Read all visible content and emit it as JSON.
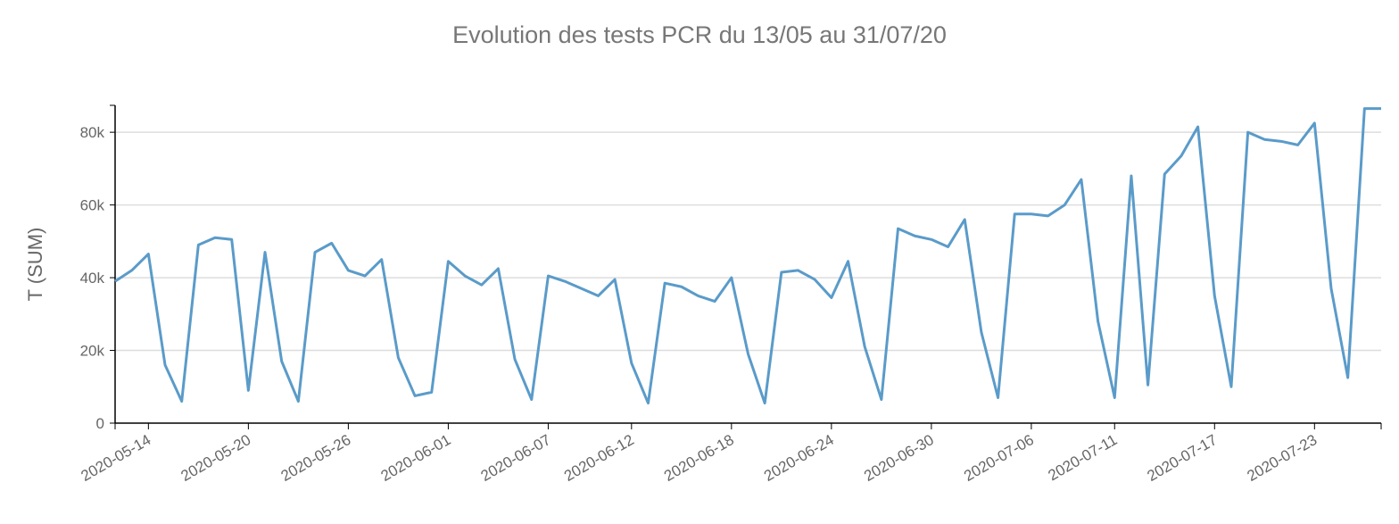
{
  "chart_data": {
    "type": "line",
    "title": "Evolution des tests PCR du 13/05 au 31/07/20",
    "y_label": "T (SUM)",
    "x": [
      "2020-05-12",
      "2020-05-13",
      "2020-05-14",
      "2020-05-15",
      "2020-05-16",
      "2020-05-17",
      "2020-05-18",
      "2020-05-19",
      "2020-05-20",
      "2020-05-21",
      "2020-05-22",
      "2020-05-23",
      "2020-05-24",
      "2020-05-25",
      "2020-05-26",
      "2020-05-27",
      "2020-05-28",
      "2020-05-29",
      "2020-05-30",
      "2020-05-31",
      "2020-06-01",
      "2020-06-02",
      "2020-06-03",
      "2020-06-04",
      "2020-06-05",
      "2020-06-06",
      "2020-06-07",
      "2020-06-08",
      "2020-06-09",
      "2020-06-10",
      "2020-06-11",
      "2020-06-12",
      "2020-06-13",
      "2020-06-14",
      "2020-06-15",
      "2020-06-16",
      "2020-06-17",
      "2020-06-18",
      "2020-06-19",
      "2020-06-20",
      "2020-06-21",
      "2020-06-22",
      "2020-06-23",
      "2020-06-24",
      "2020-06-25",
      "2020-06-26",
      "2020-06-27",
      "2020-06-28",
      "2020-06-29",
      "2020-06-30",
      "2020-07-01",
      "2020-07-02",
      "2020-07-03",
      "2020-07-04",
      "2020-07-05",
      "2020-07-06",
      "2020-07-07",
      "2020-07-08",
      "2020-07-09",
      "2020-07-10",
      "2020-07-11",
      "2020-07-12",
      "2020-07-13",
      "2020-07-14",
      "2020-07-15",
      "2020-07-16",
      "2020-07-17",
      "2020-07-18",
      "2020-07-19",
      "2020-07-20",
      "2020-07-21",
      "2020-07-22",
      "2020-07-23",
      "2020-07-24",
      "2020-07-25",
      "2020-07-26",
      "2020-07-27"
    ],
    "series": [
      {
        "name": "T",
        "color": "#5a9bc9",
        "values": [
          39000,
          42000,
          46500,
          16000,
          6000,
          49000,
          51000,
          50500,
          9000,
          47000,
          17000,
          6000,
          47000,
          49500,
          42000,
          40500,
          45000,
          18000,
          7500,
          8500,
          44500,
          40500,
          38000,
          42500,
          17500,
          6500,
          40500,
          39000,
          37000,
          35000,
          39500,
          16500,
          5500,
          38500,
          37500,
          35000,
          33500,
          40000,
          19000,
          5500,
          41500,
          42000,
          39500,
          34500,
          44500,
          21000,
          6500,
          53500,
          51500,
          50500,
          48500,
          56000,
          25000,
          7000,
          57500,
          57500,
          57000,
          60000,
          67000,
          28000,
          7000,
          68000,
          10500,
          68500,
          73500,
          81500,
          35000,
          10000,
          80000,
          78000,
          77500,
          76500,
          82500,
          37000,
          12500,
          86500,
          86500
        ]
      }
    ],
    "xlim": [
      "2020-05-12",
      "2020-07-27"
    ],
    "xticks": [
      "2020-05-14",
      "2020-05-20",
      "2020-05-26",
      "2020-06-01",
      "2020-06-07",
      "2020-06-12",
      "2020-06-18",
      "2020-06-24",
      "2020-06-30",
      "2020-07-06",
      "2020-07-11",
      "2020-07-17",
      "2020-07-23"
    ],
    "ylim": [
      0,
      87400
    ],
    "yticks": [
      0,
      {
        "value": 20000,
        "label": "20k"
      },
      {
        "value": 40000,
        "label": "40k"
      },
      {
        "value": 60000,
        "label": "60k"
      },
      {
        "value": 80000,
        "label": "80k"
      }
    ],
    "grid": true
  }
}
